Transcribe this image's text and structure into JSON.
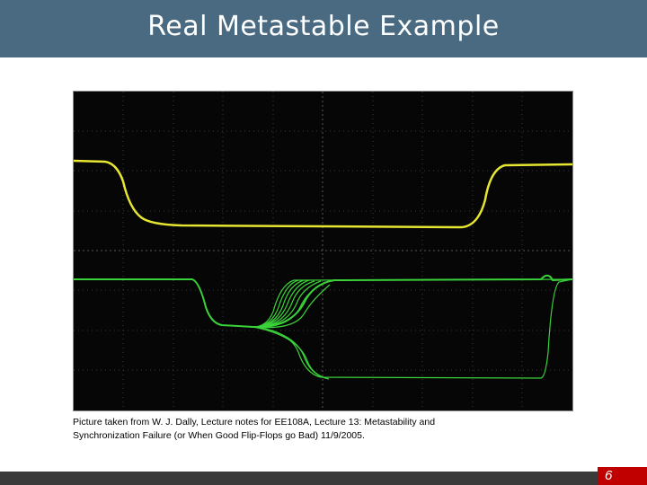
{
  "slide": {
    "title": "Real Metastable Example",
    "page_number": "6"
  },
  "figure": {
    "caption_line1": "Picture taken from W. J. Dally, Lecture notes for EE108A, Lecture 13: Metastability and",
    "caption_line2": "Synchronization Failure (or When Good Flip-Flops go Bad) 11/9/2005.",
    "trace_colors": {
      "clock": "#e6e632",
      "output": "#3ad23a"
    }
  },
  "colors": {
    "title_bar": "#4a6a82",
    "footer_bar": "#3a3a3a",
    "page_box": "#c00000",
    "scope_background": "#060606"
  }
}
